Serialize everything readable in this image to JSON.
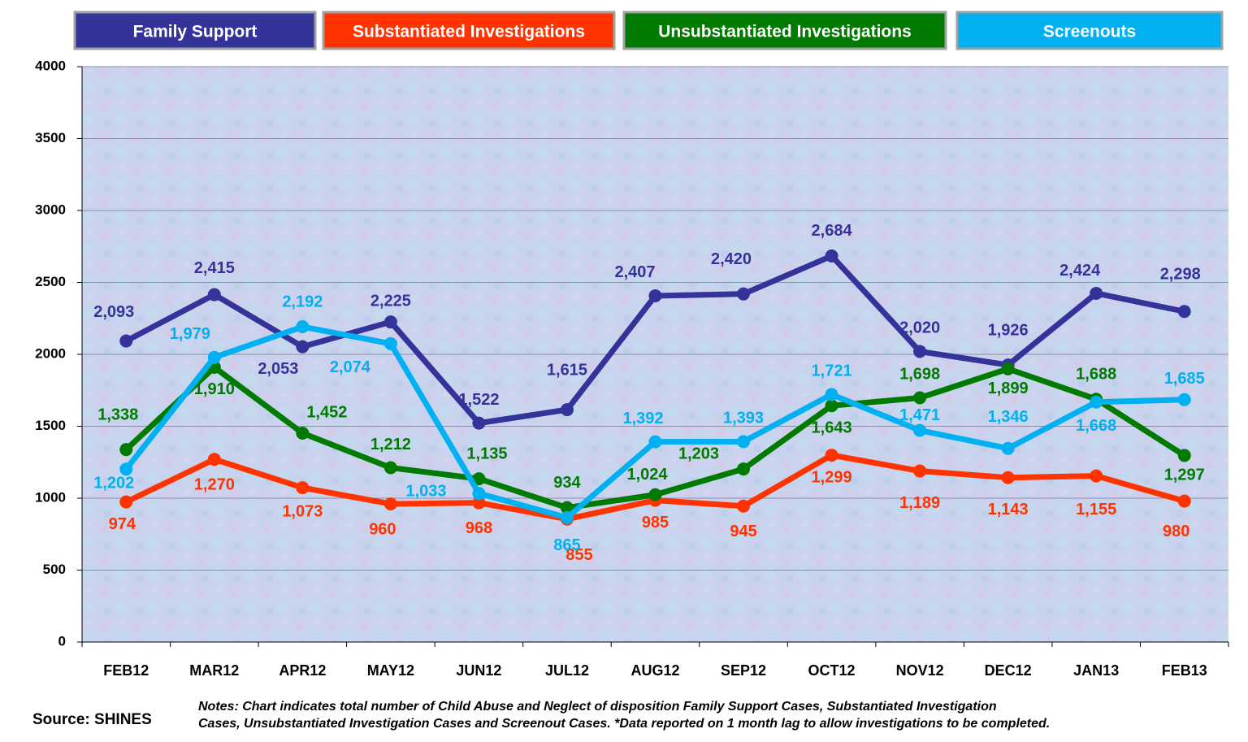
{
  "chart_data": {
    "type": "line",
    "categories": [
      "FEB12",
      "MAR12",
      "APR12",
      "MAY12",
      "JUN12",
      "JUL12",
      "AUG12",
      "SEP12",
      "OCT12",
      "NOV12",
      "DEC12",
      "JAN13",
      "FEB13"
    ],
    "series": [
      {
        "name": "Family Support",
        "color": "#333399",
        "values": [
          2093,
          2415,
          2053,
          2225,
          1522,
          1615,
          2407,
          2420,
          2684,
          2020,
          1926,
          2424,
          2298
        ],
        "value_labels": [
          "2,093",
          "2,415",
          "2,053",
          "2,225",
          "1,522",
          "1,615",
          "2,407",
          "2,420",
          "2,684",
          "2,020",
          "1,926",
          "2,424",
          "2,298"
        ]
      },
      {
        "name": "Substantiated Investigations",
        "color": "#ff3300",
        "values": [
          974,
          1270,
          1073,
          960,
          968,
          855,
          985,
          945,
          1299,
          1189,
          1143,
          1155,
          980
        ],
        "value_labels": [
          "974",
          "1,270",
          "1,073",
          "960",
          "968",
          "855",
          "985",
          "945",
          "1,299",
          "1,189",
          "1,143",
          "1,155",
          "980"
        ]
      },
      {
        "name": "Unsubstantiated Investigations",
        "color": "#007a00",
        "values": [
          1338,
          1910,
          1452,
          1212,
          1135,
          934,
          1024,
          1203,
          1643,
          1698,
          1899,
          1688,
          1297
        ],
        "value_labels": [
          "1,338",
          "1,910",
          "1,452",
          "1,212",
          "1,135",
          "934",
          "1,024",
          "1,203",
          "1,643",
          "1,698",
          "1,899",
          "1,688",
          "1,297"
        ]
      },
      {
        "name": "Screenouts",
        "color": "#00b0f0",
        "values": [
          1202,
          1979,
          2192,
          2074,
          1033,
          865,
          1392,
          1393,
          1721,
          1471,
          1346,
          1668,
          1685
        ],
        "value_labels": [
          "1,202",
          "1,979",
          "2,192",
          "2,074",
          "1,033",
          "865",
          "1,392",
          "1,393",
          "1,721",
          "1,471",
          "1,346",
          "1,668",
          "1,685"
        ]
      }
    ],
    "ylim": [
      0,
      4000
    ],
    "yticks": [
      0,
      500,
      1000,
      1500,
      2000,
      2500,
      3000,
      3500,
      4000
    ],
    "grid": true,
    "source": "Source: SHINES",
    "notes": [
      "Notes: Chart indicates total number of Child Abuse and Neglect of disposition  Family Support Cases, Substantiated Investigation",
      "Cases, Unsubstantiated  Investigation Cases and Screenout Cases.  *Data reported on 1 month lag to allow investigations to be completed."
    ]
  }
}
